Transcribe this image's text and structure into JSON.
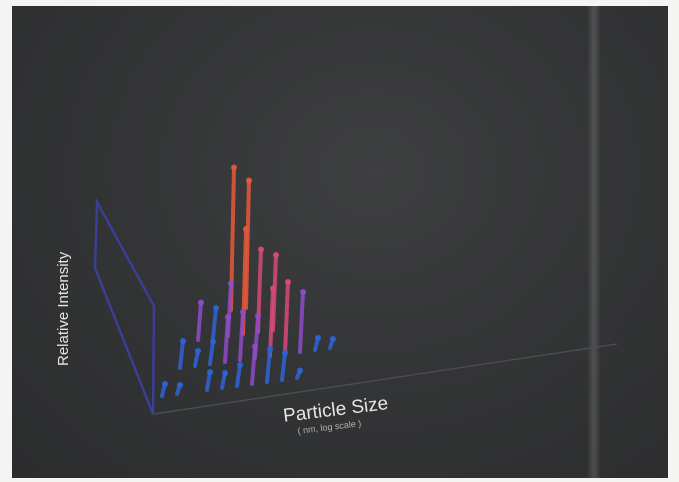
{
  "chart_data": {
    "type": "scatter",
    "title": "",
    "xlabel": "Particle Size",
    "x_sublabel": "( nm, log scale )",
    "ylabel": "Relative Intensity",
    "grid": false,
    "colors": {
      "panel": "#343536",
      "axis_frame": "#3b3f9a",
      "low": "#2f63d6",
      "mid": "#8f4bc9",
      "high": "#d64a7a",
      "peak": "#e8583a",
      "text": "#e6e6e6"
    },
    "series": [
      {
        "values": [
          {
            "x": 1,
            "z": 3,
            "y": 0.95
          },
          {
            "x": 2,
            "z": 3,
            "y": 0.85
          },
          {
            "x": 3,
            "z": 2,
            "y": 0.7
          },
          {
            "x": 4,
            "z": 2,
            "y": 0.55
          },
          {
            "x": 5,
            "z": 2,
            "y": 0.5
          },
          {
            "x": 6,
            "z": 1,
            "y": 0.45
          },
          {
            "x": 7,
            "z": 1,
            "y": 0.48
          },
          {
            "x": 8,
            "z": 1,
            "y": 0.4
          },
          {
            "x": 2,
            "z": 2,
            "y": 0.35
          },
          {
            "x": 3,
            "z": 1,
            "y": 0.3
          },
          {
            "x": 4,
            "z": 1,
            "y": 0.32
          },
          {
            "x": 5,
            "z": 1,
            "y": 0.28
          },
          {
            "x": 6,
            "z": 0,
            "y": 0.25
          },
          {
            "x": 7,
            "z": 0,
            "y": 0.22
          },
          {
            "x": 8,
            "z": 0,
            "y": 0.18
          },
          {
            "x": 1,
            "z": 2,
            "y": 0.2
          },
          {
            "x": 2,
            "z": 1,
            "y": 0.15
          },
          {
            "x": 3,
            "z": 0,
            "y": 0.12
          },
          {
            "x": 4,
            "z": 0,
            "y": 0.1
          },
          {
            "x": 5,
            "z": 0,
            "y": 0.14
          },
          {
            "x": 9,
            "z": 1,
            "y": 0.08
          },
          {
            "x": 10,
            "z": 1,
            "y": 0.06
          },
          {
            "x": 9,
            "z": 0,
            "y": 0.05
          },
          {
            "x": 1,
            "z": 1,
            "y": 0.1
          },
          {
            "x": 1,
            "z": 0,
            "y": 0.06
          },
          {
            "x": 0,
            "z": 2,
            "y": 0.25
          },
          {
            "x": 0,
            "z": 1,
            "y": 0.18
          },
          {
            "x": 0,
            "z": 0,
            "y": 0.08
          }
        ]
      }
    ]
  }
}
